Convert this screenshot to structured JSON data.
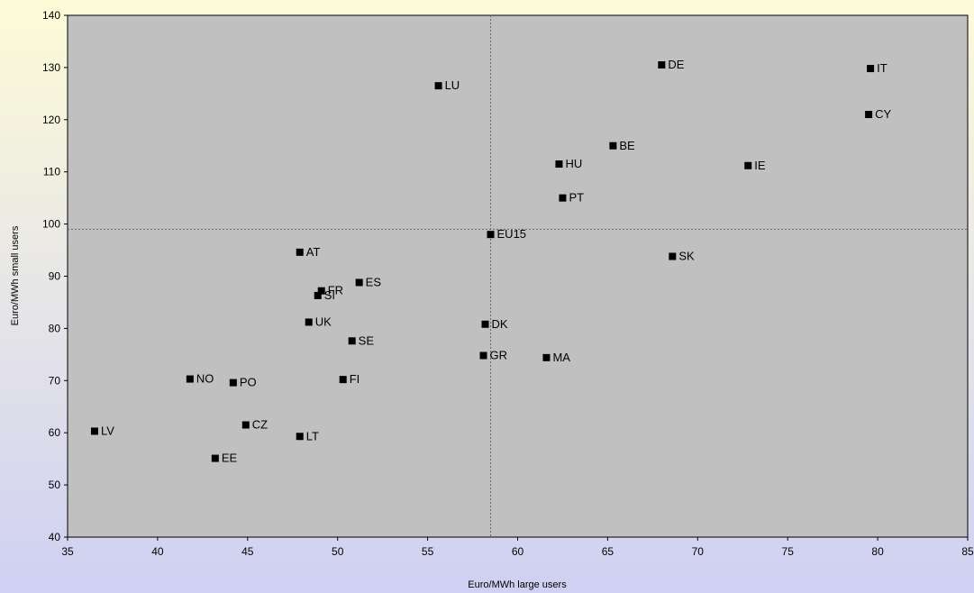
{
  "chart_data": {
    "type": "scatter",
    "title": "",
    "xlabel": "Euro/MWh large users",
    "ylabel": "Euro/MWh small users",
    "xlim": [
      35,
      85
    ],
    "ylim": [
      40,
      140
    ],
    "xticks": [
      35,
      40,
      45,
      50,
      55,
      60,
      65,
      70,
      75,
      80,
      85
    ],
    "yticks": [
      40,
      50,
      60,
      70,
      80,
      90,
      100,
      110,
      120,
      130,
      140
    ],
    "reference_lines": {
      "x": 58.5,
      "y": 99
    },
    "grid": false,
    "plot_background": "#c0c0c0",
    "marker_color": "#000000",
    "points": [
      {
        "label": "LU",
        "x": 55.6,
        "y": 126.5
      },
      {
        "label": "DE",
        "x": 68.0,
        "y": 130.5
      },
      {
        "label": "IT",
        "x": 79.6,
        "y": 129.8
      },
      {
        "label": "CY",
        "x": 79.5,
        "y": 121.0
      },
      {
        "label": "BE",
        "x": 65.3,
        "y": 115.0
      },
      {
        "label": "HU",
        "x": 62.3,
        "y": 111.5
      },
      {
        "label": "IE",
        "x": 72.8,
        "y": 111.2
      },
      {
        "label": "PT",
        "x": 62.5,
        "y": 105.0
      },
      {
        "label": "EU15",
        "x": 58.5,
        "y": 98.0
      },
      {
        "label": "SK",
        "x": 68.6,
        "y": 93.8
      },
      {
        "label": "AT",
        "x": 47.9,
        "y": 94.6
      },
      {
        "label": "ES",
        "x": 51.2,
        "y": 88.8
      },
      {
        "label": "FR",
        "x": 49.1,
        "y": 87.2
      },
      {
        "label": "SI",
        "x": 48.9,
        "y": 86.3
      },
      {
        "label": "UK",
        "x": 48.4,
        "y": 81.2
      },
      {
        "label": "DK",
        "x": 58.2,
        "y": 80.8
      },
      {
        "label": "SE",
        "x": 50.8,
        "y": 77.6
      },
      {
        "label": "GR",
        "x": 58.1,
        "y": 74.8
      },
      {
        "label": "MA",
        "x": 61.6,
        "y": 74.4
      },
      {
        "label": "NO",
        "x": 41.8,
        "y": 70.3
      },
      {
        "label": "PO",
        "x": 44.2,
        "y": 69.6
      },
      {
        "label": "FI",
        "x": 50.3,
        "y": 70.2
      },
      {
        "label": "CZ",
        "x": 44.9,
        "y": 61.5
      },
      {
        "label": "LV",
        "x": 36.5,
        "y": 60.3
      },
      {
        "label": "LT",
        "x": 47.9,
        "y": 59.3
      },
      {
        "label": "EE",
        "x": 43.2,
        "y": 55.1
      }
    ]
  }
}
